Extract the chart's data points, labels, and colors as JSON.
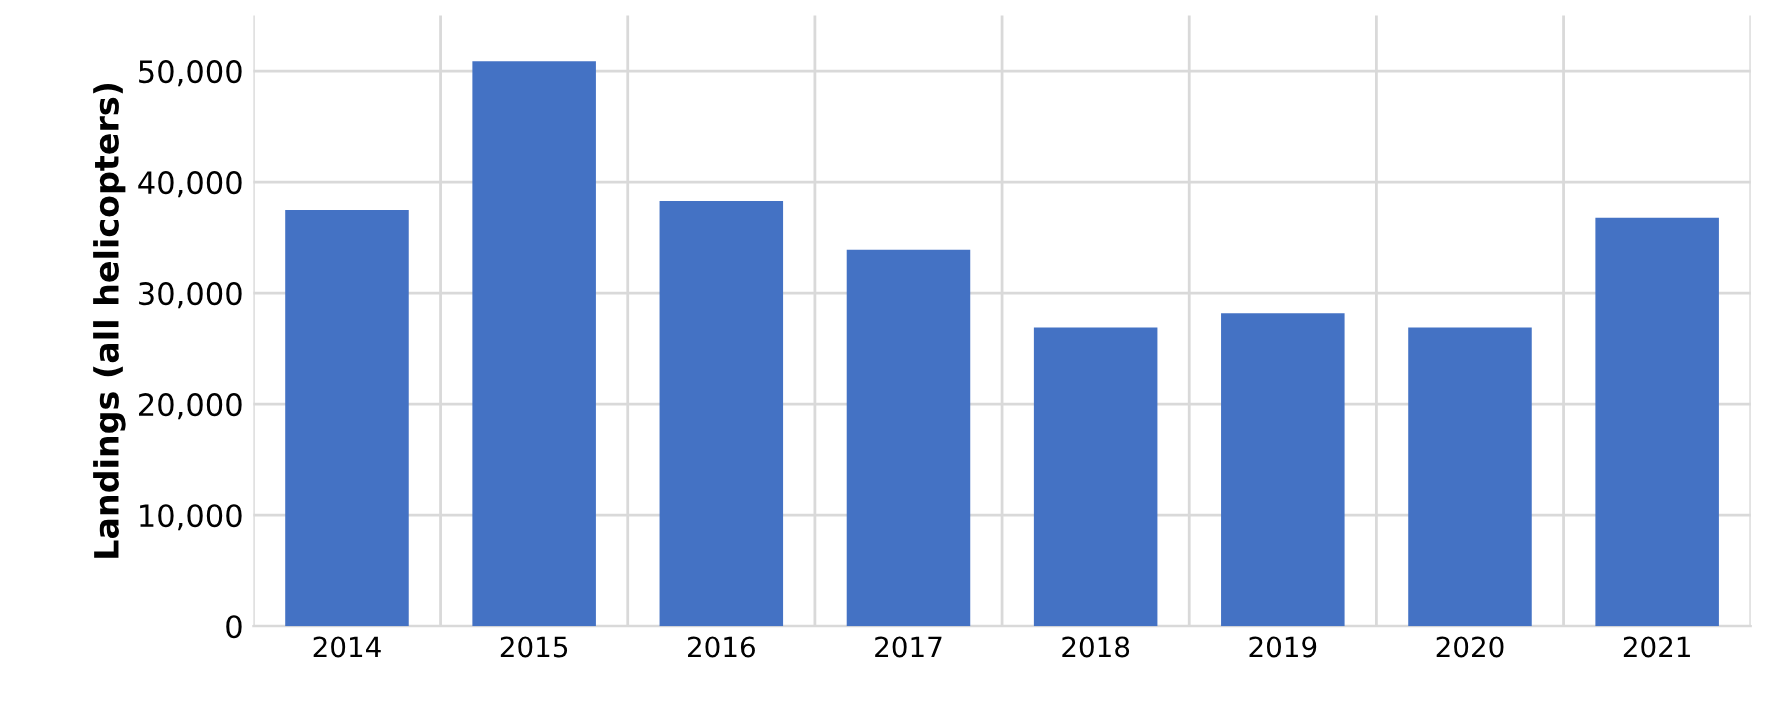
{
  "chart_data": {
    "type": "bar",
    "ylabel": "Landings (all helicopters)",
    "categories": [
      "2014",
      "2015",
      "2016",
      "2017",
      "2018",
      "2019",
      "2020",
      "2021"
    ],
    "values": [
      37500,
      50900,
      38300,
      33900,
      26900,
      28200,
      26900,
      36800
    ],
    "color": "#4472c4",
    "ylim": [
      0,
      55000
    ],
    "yticks": [
      {
        "value": 0,
        "label": "0"
      },
      {
        "value": 10000,
        "label": "10,000"
      },
      {
        "value": 20000,
        "label": "20,000"
      },
      {
        "value": 30000,
        "label": "30,000"
      },
      {
        "value": 40000,
        "label": "40,000"
      },
      {
        "value": 50000,
        "label": "50,000"
      }
    ],
    "grid": true
  }
}
